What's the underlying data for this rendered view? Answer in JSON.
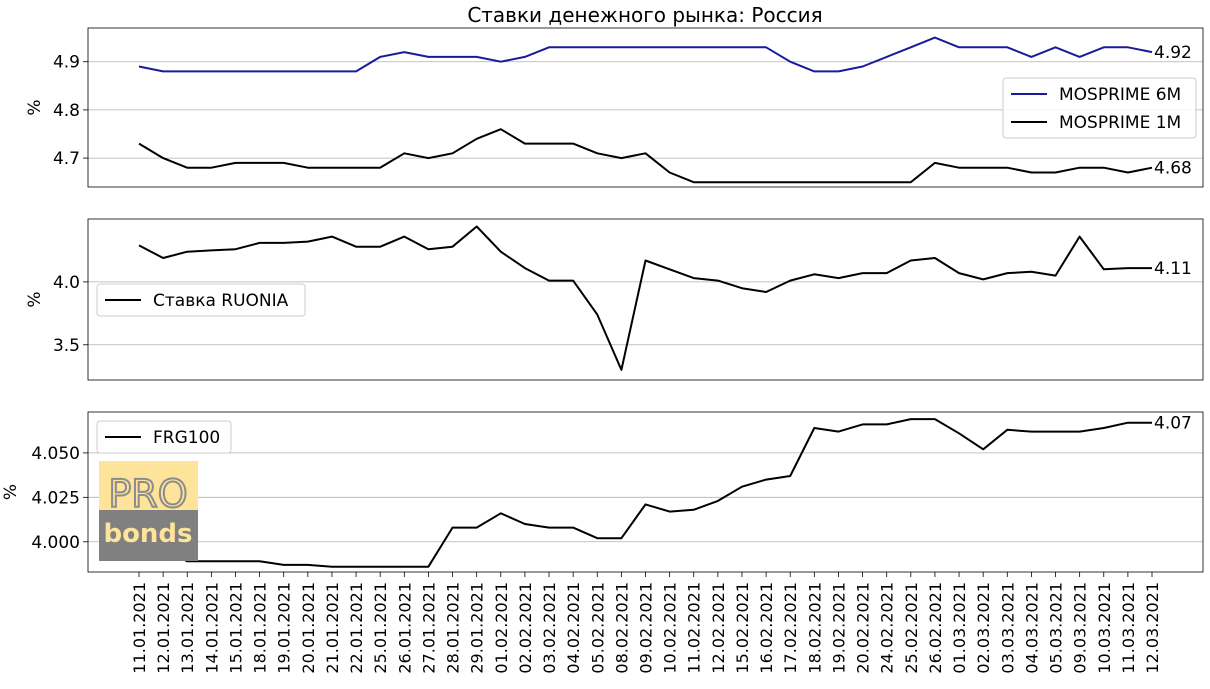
{
  "title": "Ставки денежного рынка: Россия",
  "x_labels": [
    "11.01.2021",
    "12.01.2021",
    "13.01.2021",
    "14.01.2021",
    "15.01.2021",
    "18.01.2021",
    "19.01.2021",
    "20.01.2021",
    "21.01.2021",
    "22.01.2021",
    "25.01.2021",
    "26.01.2021",
    "27.01.2021",
    "28.01.2021",
    "29.01.2021",
    "01.02.2021",
    "02.02.2021",
    "03.02.2021",
    "04.02.2021",
    "05.02.2021",
    "08.02.2021",
    "09.02.2021",
    "10.02.2021",
    "11.02.2021",
    "12.02.2021",
    "15.02.2021",
    "16.02.2021",
    "17.02.2021",
    "18.02.2021",
    "19.02.2021",
    "20.02.2021",
    "24.02.2021",
    "25.02.2021",
    "26.02.2021",
    "01.03.2021",
    "02.03.2021",
    "03.03.2021",
    "04.03.2021",
    "05.03.2021",
    "09.03.2021",
    "10.03.2021",
    "11.03.2021",
    "12.03.2021"
  ],
  "logo": {
    "top": "PRO",
    "bottom": "bonds",
    "top_color": "#fde49a",
    "bottom_color": "#808080"
  },
  "chart_data": [
    {
      "type": "line",
      "ylabel": "%",
      "ylim": [
        4.64,
        4.97
      ],
      "yticks": [
        4.7,
        4.8,
        4.9
      ],
      "ytick_labels": [
        "4.7",
        "4.8",
        "4.9"
      ],
      "grid": "horizontal",
      "legend_position": "center-right",
      "series": [
        {
          "name": "MOSPRIME 6M",
          "color": "#1a1a9c",
          "end_label": "4.92",
          "values": [
            4.89,
            4.88,
            4.88,
            4.88,
            4.88,
            4.88,
            4.88,
            4.88,
            4.88,
            4.88,
            4.91,
            4.92,
            4.91,
            4.91,
            4.91,
            4.9,
            4.91,
            4.93,
            4.93,
            4.93,
            4.93,
            4.93,
            4.93,
            4.93,
            4.93,
            4.93,
            4.93,
            4.9,
            4.88,
            4.88,
            4.89,
            4.91,
            4.93,
            4.95,
            4.93,
            4.93,
            4.93,
            4.91,
            4.93,
            4.91,
            4.93,
            4.93,
            4.92
          ]
        },
        {
          "name": "MOSPRIME 1M",
          "color": "#000000",
          "end_label": "4.68",
          "values": [
            4.73,
            4.7,
            4.68,
            4.68,
            4.69,
            4.69,
            4.69,
            4.68,
            4.68,
            4.68,
            4.68,
            4.71,
            4.7,
            4.71,
            4.74,
            4.76,
            4.73,
            4.73,
            4.73,
            4.71,
            4.7,
            4.71,
            4.67,
            4.65,
            4.65,
            4.65,
            4.65,
            4.65,
            4.65,
            4.65,
            4.65,
            4.65,
            4.65,
            4.69,
            4.68,
            4.68,
            4.68,
            4.67,
            4.67,
            4.68,
            4.68,
            4.67,
            4.68
          ]
        }
      ]
    },
    {
      "type": "line",
      "ylabel": "%",
      "ylim": [
        3.22,
        4.5
      ],
      "yticks": [
        3.5,
        4.0
      ],
      "ytick_labels": [
        "3.5",
        "4.0"
      ],
      "grid": "horizontal",
      "legend_position": "center-left",
      "series": [
        {
          "name": "Ставка RUONIA",
          "color": "#000000",
          "end_label": "4.11",
          "values": [
            4.29,
            4.19,
            4.24,
            4.25,
            4.26,
            4.31,
            4.31,
            4.32,
            4.36,
            4.28,
            4.28,
            4.36,
            4.26,
            4.28,
            4.44,
            4.24,
            4.11,
            4.01,
            4.01,
            3.74,
            3.3,
            4.17,
            4.1,
            4.03,
            4.01,
            3.95,
            3.92,
            4.01,
            4.06,
            4.03,
            4.07,
            4.07,
            4.17,
            4.19,
            4.07,
            4.02,
            4.07,
            4.08,
            4.05,
            4.36,
            4.1,
            4.11,
            4.11
          ]
        }
      ]
    },
    {
      "type": "line",
      "ylabel": "%",
      "ylim": [
        3.983,
        4.073
      ],
      "yticks": [
        4.0,
        4.025,
        4.05
      ],
      "ytick_labels": [
        "4.000",
        "4.025",
        "4.050"
      ],
      "grid": "horizontal",
      "legend_position": "top-left",
      "series": [
        {
          "name": "FRG100",
          "color": "#000000",
          "end_label": "4.07",
          "values": [
            4.007,
            3.996,
            3.989,
            3.989,
            3.989,
            3.989,
            3.987,
            3.987,
            3.986,
            3.986,
            3.986,
            3.986,
            3.986,
            4.008,
            4.008,
            4.016,
            4.01,
            4.008,
            4.008,
            4.002,
            4.002,
            4.021,
            4.017,
            4.018,
            4.023,
            4.031,
            4.035,
            4.037,
            4.064,
            4.062,
            4.066,
            4.066,
            4.069,
            4.069,
            4.061,
            4.052,
            4.063,
            4.062,
            4.062,
            4.062,
            4.064,
            4.067,
            4.067
          ]
        }
      ]
    }
  ]
}
